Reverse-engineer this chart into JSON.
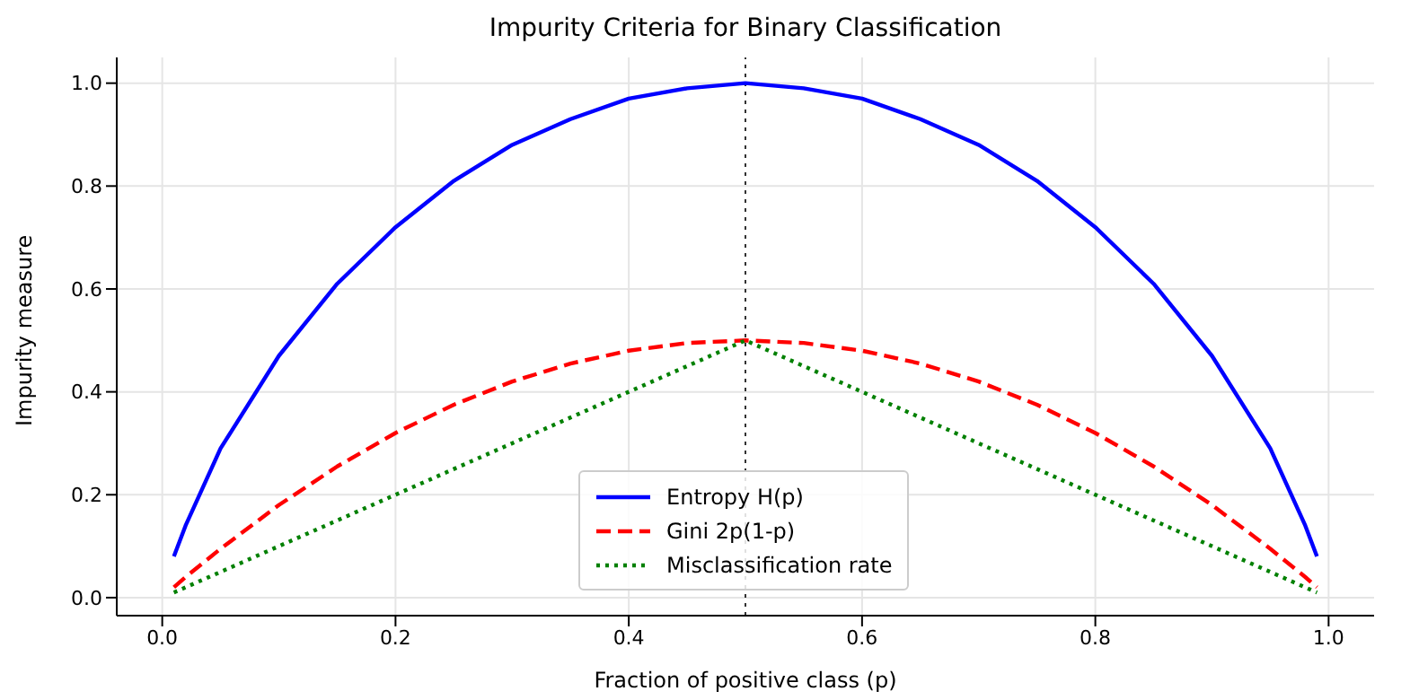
{
  "chart_data": {
    "type": "line",
    "title": "Impurity Criteria for Binary Classification",
    "xlabel": "Fraction of positive class (p)",
    "ylabel": "Impurity measure",
    "x": [
      0.01,
      0.02,
      0.05,
      0.1,
      0.15,
      0.2,
      0.25,
      0.3,
      0.35,
      0.4,
      0.45,
      0.5,
      0.55,
      0.6,
      0.65,
      0.7,
      0.75,
      0.8,
      0.85,
      0.9,
      0.95,
      0.98,
      0.99
    ],
    "series": [
      {
        "name": "Entropy H(p)",
        "color": "#0000ff",
        "line_style": "solid",
        "values": [
          0.08,
          0.14,
          0.29,
          0.47,
          0.61,
          0.72,
          0.81,
          0.88,
          0.93,
          0.97,
          0.99,
          1.0,
          0.99,
          0.97,
          0.93,
          0.88,
          0.81,
          0.72,
          0.61,
          0.47,
          0.29,
          0.14,
          0.08
        ]
      },
      {
        "name": "Gini 2p(1-p)",
        "color": "#ff0000",
        "line_style": "dashed",
        "values": [
          0.02,
          0.04,
          0.095,
          0.18,
          0.255,
          0.32,
          0.375,
          0.42,
          0.455,
          0.48,
          0.495,
          0.5,
          0.495,
          0.48,
          0.455,
          0.42,
          0.375,
          0.32,
          0.255,
          0.18,
          0.095,
          0.04,
          0.02
        ]
      },
      {
        "name": "Misclassification rate",
        "color": "#008000",
        "line_style": "dotted",
        "values": [
          0.01,
          0.02,
          0.05,
          0.1,
          0.15,
          0.2,
          0.25,
          0.3,
          0.35,
          0.4,
          0.45,
          0.5,
          0.45,
          0.4,
          0.35,
          0.3,
          0.25,
          0.2,
          0.15,
          0.1,
          0.05,
          0.02,
          0.01
        ]
      }
    ],
    "xlim": [
      -0.039,
      1.039
    ],
    "xticks": [
      {
        "value": 0,
        "label": "0.0"
      },
      0.2,
      0.4,
      0.6,
      0.8,
      {
        "value": 1,
        "label": "1.0"
      }
    ],
    "ylim": [
      -0.035,
      1.05
    ],
    "yticks": [
      {
        "value": 0,
        "label": "0.0"
      },
      0.2,
      0.4,
      0.6,
      0.8,
      {
        "value": 1,
        "label": "1.0"
      }
    ],
    "ref_lines": [
      {
        "axis": "x",
        "value": 0.5,
        "color": "#000000",
        "line_style": "dotted"
      }
    ],
    "grid": true,
    "legend": "bottom",
    "marker": "none"
  }
}
